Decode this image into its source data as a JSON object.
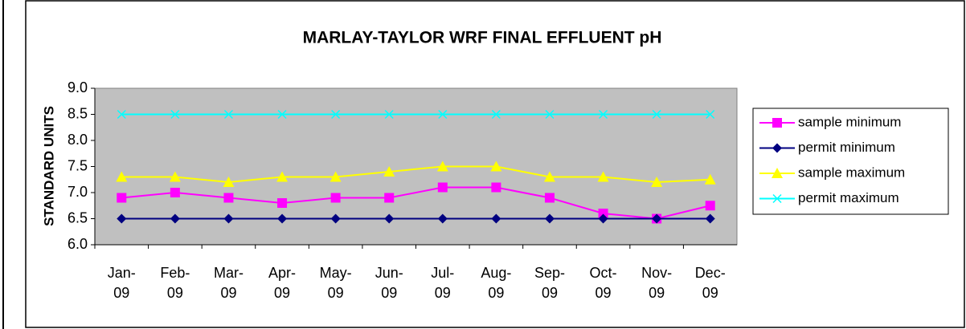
{
  "chart_data": {
    "type": "line",
    "title": "MARLAY-TAYLOR WRF FINAL EFFLUENT pH",
    "y_label": "STANDARD UNITS",
    "categories": [
      "Jan-09",
      "Feb-09",
      "Mar-09",
      "Apr-09",
      "May-09",
      "Jun-09",
      "Jul-09",
      "Aug-09",
      "Sep-09",
      "Oct-09",
      "Nov-09",
      "Dec-09"
    ],
    "series": [
      {
        "name": "sample minimum",
        "color": "#ff00ff",
        "marker": "square",
        "values": [
          6.9,
          7.0,
          6.9,
          6.8,
          6.9,
          6.9,
          7.1,
          7.1,
          6.9,
          6.6,
          6.5,
          6.75
        ]
      },
      {
        "name": "permit minimum",
        "color": "#000080",
        "marker": "diamond",
        "values": [
          6.5,
          6.5,
          6.5,
          6.5,
          6.5,
          6.5,
          6.5,
          6.5,
          6.5,
          6.5,
          6.5,
          6.5
        ]
      },
      {
        "name": "sample maximum",
        "color": "#ffff00",
        "marker": "triangle",
        "values": [
          7.3,
          7.3,
          7.2,
          7.3,
          7.3,
          7.4,
          7.5,
          7.5,
          7.3,
          7.3,
          7.2,
          7.25
        ]
      },
      {
        "name": "permit maximum",
        "color": "#00ffff",
        "marker": "x",
        "values": [
          8.5,
          8.5,
          8.5,
          8.5,
          8.5,
          8.5,
          8.5,
          8.5,
          8.5,
          8.5,
          8.5,
          8.5
        ]
      }
    ],
    "ylim": [
      6,
      9
    ],
    "yticks": [
      {
        "value": 6,
        "label": "6.0"
      },
      6.5,
      {
        "value": 7,
        "label": "7.0"
      },
      7.5,
      {
        "value": 8,
        "label": "8.0"
      },
      8.5,
      {
        "value": 9,
        "label": "9.0"
      }
    ],
    "plot_background": "#c0c0c0",
    "legend": "right"
  }
}
